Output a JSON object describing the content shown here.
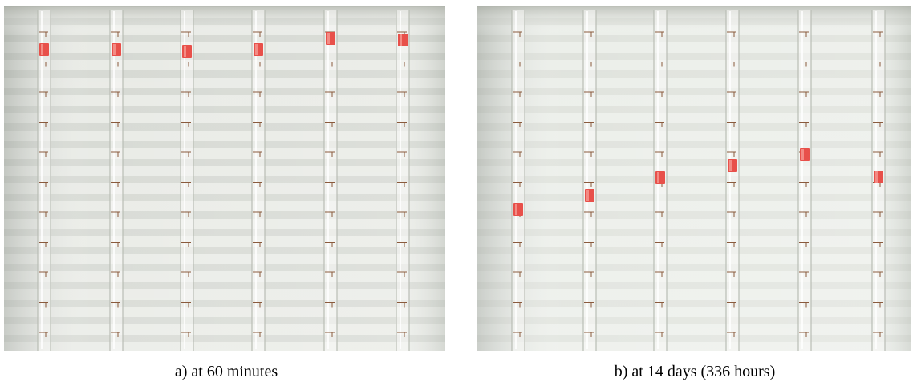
{
  "figure": {
    "panels": [
      {
        "caption": "a) at 60 minutes"
      },
      {
        "caption": "b) at 14 days (336 hours)"
      }
    ]
  }
}
